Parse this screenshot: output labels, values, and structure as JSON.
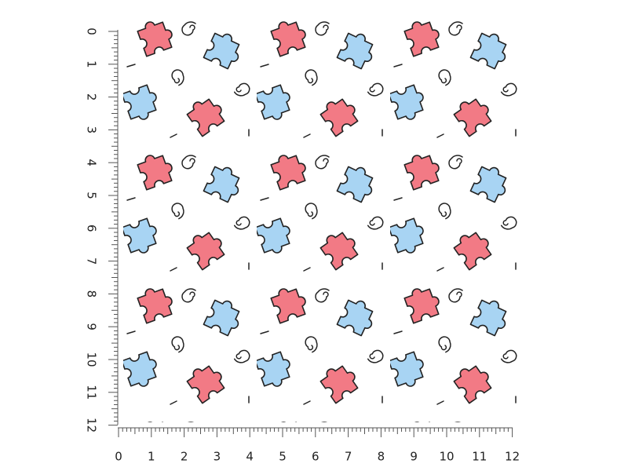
{
  "left_ruler": {
    "labels": [
      "0",
      "1",
      "2",
      "3",
      "4",
      "5",
      "6",
      "7",
      "8",
      "9",
      "10",
      "11",
      "12"
    ]
  },
  "bottom_ruler": {
    "labels": [
      "0",
      "1",
      "2",
      "3",
      "4",
      "5",
      "6",
      "7",
      "8",
      "9",
      "10",
      "11",
      "12"
    ]
  }
}
